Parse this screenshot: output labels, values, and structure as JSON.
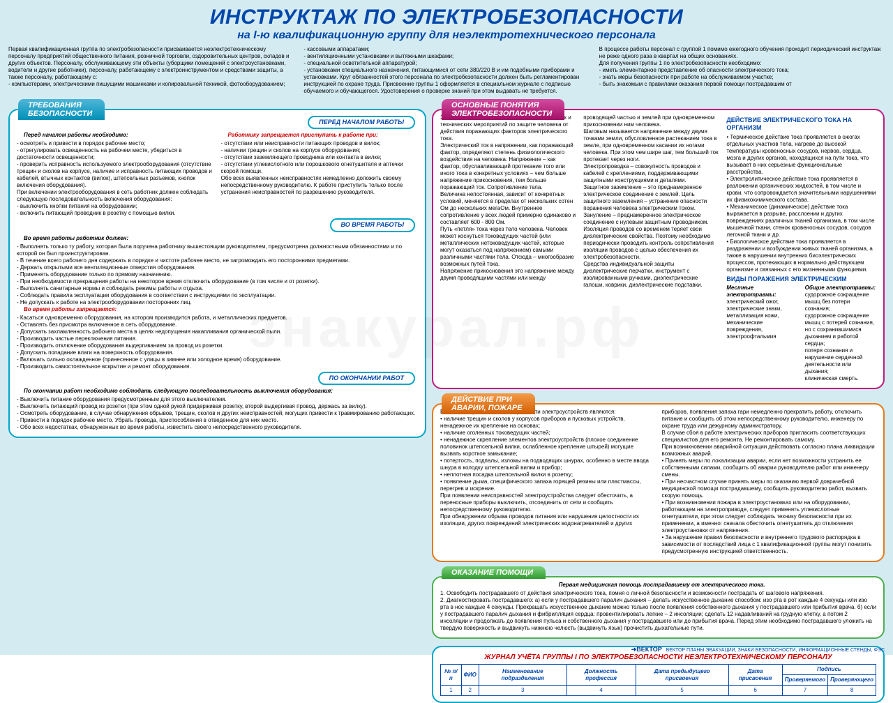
{
  "title": "ИНСТРУКТАЖ ПО ЭЛЕКТРОБЕЗОПАСНОСТИ",
  "subtitle": "на I-ю квалификационную группу для неэлектротехнического персонала",
  "intro": {
    "c1": "Первая квалификационная группа по электробезопасности присваивается неэлектротехническому персоналу предприятий общественного питания, розничной торговли, оздоровительных центров, складов и других объектов. Персоналу, обслуживающему эти объекты (уборщики помещений с электроустановками, водители и другие работники), персоналу, работающему с электроинструментом и средствами защиты, а также персоналу, работающему с:\n- компьютерами, электрическими пишущими машинками и копировальной техникой, фотооборудованием;",
    "c2": "- кассовыми аппаратами;\n- вентиляционными установками и вытяжными шкафами;\n- специальной осветительной аппаратурой;\n- установками специального назначения, питающимися от сети 380/220 В и им подобными приборами и установками. Круг обязанностей этого персонала по электробезопасности должен быть регламентирован инструкцией по охране труда. Присвоение группы 1 оформляется в специальном журнале с подписью обучаемого и обучающегося. Удостоверения о проверке знаний при этом выдавать не требуется.",
    "c3": "В процессе работы персонал с группой 1 помимо ежегодного обучения проходит периодический инструктаж не реже одного раза в квартал на общих основаниях.\nДля получения группы 1 по электробезопасности необходимо:\n- иметь элементарное представление об опасности электрического тока;\n- знать меры безопасности при работе на обслуживаемом участке;\n- быть знакомым с правилами оказания первой помощи пострадавшим от"
  },
  "safety": {
    "tab": "ТРЕБОВАНИЯ\nБЕЗОПАСНОСТИ",
    "pill1": "ПЕРЕД НАЧАЛОМ РАБОТЫ",
    "pill2": "ВО ВРЕМЯ РАБОТЫ",
    "pill3": "ПО ОКОНЧАНИИ РАБОТ",
    "l1": "Перед началом работы необходимо:",
    "l1items": "- осмотреть и привести в порядок рабочее место;\n- отрегулировать освещенность на рабочем месте, убедиться в достаточности освещенности;\n- проверить исправность используемого электрооборудования (отсутствие трещин и сколов на корпусе, наличие и исправность питающих проводов и кабелей, втычных контактов (вилок), штепсельных разъемов, кнопок включения оборудования).\nПри включении электрооборудования в сеть работник должен соблюдать следующую последовательность включения оборудования:\n- выключить кнопки питания на оборудовании;\n- включить питающий проводник в розетку с помощью вилки.",
    "r1": "Работнику запрещается приступать к работе при:",
    "r1items": "- отсутствии или неисправности питающих проводов и вилок;\n- наличии трещин и сколов на корпусе оборудования;\n- отсутствии заземляющего проводника или контакта в вилке;\n- отсутствии углекислотного или порошкового огнетушителя и аптечки скорой помощи.\nОбо всех выявленных неисправностях немедленно доложить своему непосредственному руководителю. К работе приступить только после устранения неисправностей по разрешению руководителя.",
    "work_h": "Во время работы работник должен:",
    "work": "- Выполнять только ту работу, которая была поручена работнику вышестоящим руководителем, предусмотрена должностными обязанностями и по которой он был проинструктирован.\n- В течение всего рабочего дня содержать в порядке и чистоте рабочее место, не загромождать его посторонними предметами.\n- Держать открытыми все вентиляционные отверстия оборудования.\n- Применять оборудование только по прямому назначению.\n- При необходимости прекращения работы на некоторое время отключить оборудование (в том числе и от розетки).\n- Выполнять санитарные нормы и соблюдать режимы работы и отдыха.\n- Соблюдать правила эксплуатации оборудования в соответствии с инструкциями по эксплуатации.\n- Не допускать к работе на электрооборудовании посторонних лиц.",
    "forbid_h": "Во время работы запрещается:",
    "forbid": "- Касаться одновременно оборудования, на котором производится работа, и металлических предметов.\n- Оставлять без присмотра включенное в сеть оборудование.\n- Допускать захламленность рабочего места в целях недопущения накапливания органической пыли.\n- Производить частые переключения питания.\n- Производить отключение оборудования выдергиванием за провод из розетки.\n- Допускать попадание влаги на поверхность оборудования.\n- Включать сильно охлажденное (принесенное с улицы в зимнее или холодное время) оборудование.\n- Производить самостоятельное вскрытие и ремонт оборудования.",
    "end_h": "По окончании работ необходимо соблюдать следующую последовательность выключения оборудования:",
    "end": "- Выключить питание оборудования предусмотренным для этого выключателем.\n- Выключить питающий провод из розетки (при этом одной рукой придерживая розетку, второй выдергивая провод, держась за вилку).\n- Осмотреть оборудование, в случае обнаружения обрывов, трещин, сколов и других неисправностей, могущих привести к травмированию работающих.\n- Привести в порядок рабочее место. Убрать провода, приспособления в отведенное для них место.\n- Обо всех недостатках, обнаруженных во время работы, известить своего непосредственного руководителя."
  },
  "concepts": {
    "tab": "ОСНОВНЫЕ ПОНЯТИЯ\nЭЛЕКТРОБЕЗОПАСНОСТИ",
    "c1": "Электробезопасность система организационных и технических мероприятий по защите человека от действия поражающих факторов электрического тока.\nЭлектрический ток в напряжении, как поражающий фактор, определяют степень физиологического воздействия на человека. Напряжение – как фактор, обуславливающий протекание того или иного тока в конкретных условиях – чем больше напряжение прикосновения, тем больше поражающий ток. Сопротивление тела.\nВеличина непостоянная, зависит от конкретных условий, меняется в пределах от нескольких сотен Ом до нескольких мегаОм. Внутреннее сопротивление у всех людей примерно одинаково и составляет 600 - 800 Ом.\nПуть «петля» тока через тело человека. Человек может коснуться токоведущих частей (или металлических нетоковедущих частей, которые могут оказаться под напряжением) самыми различными частями тела. Отсюда – многообразие возможных путей тока.\nНапряжение прикосновения это напряжение между двумя проводящими частями или между",
    "c2": "проводящей частью и землей при одновременном прикосновении ним человека.\nШаговым называется напряжение между двумя точками земли, обусловленное растеканием тока в земле, при одновременном касании их ногами человека. При этом чем шире шаг, тем больший ток протекает через ноги.\nЭлектропроводка – совокупность проводов и кабелей с креплениями, поддерживающими защитными конструкциями и деталями.\nЗащитное заземление – это преднамеренное электрическое соединение с землей. Цель защитного заземления – устранение опасности поражения человека электрическим током.\nЗануление – преднамеренное электрическое соединение с нулевым защитным проводником.\nИзоляция проводов со временем теряет свои диэлектрические свойства. Поэтому необходимо периодически проводить контроль сопротивления изоляции проводов с целью обеспечения их электробезопасности.\nСредства индивидуальной защиты диэлектрические перчатки, инструмент с изолированными ручками, диэлектрические галоши, коврики, диэлектрические подставки.",
    "h1": "ДЕЙСТВИЕ ЭЛЕКТРИЧЕСКОГО ТОКА НА ОРГАНИЗМ",
    "c3": "• Термическое действие тока проявляется в ожогах отдельных участков тела, нагреве до высокой температуры кровеносных сосудов, нервов, сердца, мозга и других органов, находящихся на пути тока, что вызывает в них серьезные функциональные расстройства.\n• Электролитическое действие тока проявляется в разложении органических жидкостей, в том числе и крови, что сопровождается значительными нарушениями их физикохимического состава.\n• Механическое (динамическое) действие тока выражается в разрыве, расслоении и других повреждениях различных тканей организма, в том числе мышечной ткани, стенок кровеносных сосудов, сосудов легочной ткани и др.\n• Биологическое действие тока проявляется в раздражении и возбуждении живых тканей организма, а также в нарушении внутренних биоэлектрических процессов, протекающих в нормально действующем организме и связанных с его жизненными функциями.",
    "h2": "ВИДЫ ПОРАЖЕНИЯ ЭЛЕКТРИЧЕСКИМ",
    "c4a_h": "Местные электротравмы:",
    "c4a": "электрический ожог,\nэлектрические знаки,\nметаллизация кожи,\nмеханические повреждения,\nэлектроофтальмия",
    "c4b_h": "Общие электротравмы:",
    "c4b": "судорожное сокращение мышц без потери сознания;\nсудорожное сокращение мышц с потерей сознания, но с сохранившимися дыханием и работой сердца;\nпотеря сознания и нарушение сердечной деятельности или дыхания;\nклиническая смерть."
  },
  "accident": {
    "tab": "ДЕЙСТВИЕ ПРИ\nАВАРИИ, ПОЖАРЕ",
    "c1": "Внешними признаками неисправности электроустройств являются:\n• наличие трещин и сколов у корпусов приборов и пусковых устройств, ненадежное их крепление на основах;\n• наличие оголенных токоведущих частей;\n• ненадежное скрепление элементов электроустройств (плохое соединение половинок штепсельной вилки, ослабленное крепление штырей) могущие вызвать короткое замыкание;\n• потертость, подпалы, изломы на подводящих шнурах, особенно в месте ввода шнура в колодку штепсельной вилки и прибор;\n• неплотная посадка штепсельной вилки в розетку;\n• появление дыма, специфического запаха горящей резины или пластмассы, перегрев и искрение.\nПри появлении неисправностей электроустройства следует обесточить, а переносные приборы выключить, отсоединить от сети и сообщить непосредственному руководителю.\nПри обнаружении обрыва проводов питания или нарушения целостности их изоляции, других повреждений электрических водонагревателей и других",
    "c2": "приборов, появления запаха гари немедленно прекратить работу, отключить питание и сообщить об этом непосредственному руководителю, инженеру по охране труда или дежурному администратору.\nВ случае сбоя в работе электрических приборов пригласить соответствующих специалистов для его ремонта. Не ремонтировать самому.\nПри возникновении аварийной ситуации действовать согласно плана ликвидации возможных аварий.\n• Принять меры по локализации аварии, если нет возможности устранить ее собственными силами, сообщить об аварии руководителю работ или инженеру смены.\n• При несчастном случае принять меры по оказанию первой доврачебной медицинской помощи пострадавшему, сообщить руководителю работ, вызвать скорую помощь.\n• При возникновении пожара в электроустановках или на оборудовании, работающем на электроприводе, следует применять углекислотные огнетушители, при этом следует соблюдать технику безопасности при их применении, а именно: сначала обесточить огнетушитель до отключения электроустановки от напряжения.\n• За нарушение правил безопасности и внутреннего трудового распорядка в зависимости от последствий лица с 1 квалификационной группы могут понизить предусмотренную инструкцией ответственность."
  },
  "help": {
    "tab": "ОКАЗАНИЕ ПОМОЩИ",
    "h": "Первая медицинская помощь пострадавшему от электрического тока.",
    "body": "1. Освободить пострадавшего от действия электрического тока, помня о личной безопасности и возможности пострадать от шагового напряжения.\n2. Диагностировать пострадавшего: а) если у пострадавшего паралич дыхания – делать искусственное дыхание способом: изо рта в рот каждые 4 секунды или изо рта в нос каждые 4 секунды. Прекращать искусственное дыхание можно только после появления собственного дыхания у пострадавшего или прибытия врача. б) если у пострадавшего паралич дыхания и фибрилляция сердца: провентилировать легкие – 2 инсоляции; сделать 12 надавливаний на грудную клетку, а потом 2 инсоляции и продолжать до появления пульса и собственного дыхания у пострадавшего или до прибытия врача. Перед этим необходимо пострадавшего уложить на твердую поверхность и выдвинуть нижнюю челюсть (выдвинуть язык) прочистить дыхательные пути."
  },
  "journal": {
    "title": "ЖУРНАЛ УЧЁТА ГРУППЫ I ПО ЭЛЕКТРОБЕЗОПАСНОСТИ  НЕЭЛЕКТРОТЕХНИЧЕСКОМУ ПЕРСОНАЛУ",
    "cols": [
      "№ п/п",
      "ФИО",
      "Наименование подразделения",
      "Должность профессия",
      "Дата предыдущего присвоения",
      "Дата присвоения",
      "Подпись"
    ],
    "subcols": [
      "Проверяемого",
      "Проверяющего"
    ],
    "nums": [
      "1",
      "2",
      "3",
      "4",
      "5",
      "6",
      "7",
      "8"
    ]
  },
  "footer": "ВЕКТОР   ПЛАНЫ ЭВАКУАЦИИ, ЗНАКИ БЕЗОПАСНОСТИ, ИНФОРМАЦИОННЫЕ СТЕНДЫ, ФЭС",
  "watermark": "знакурал.рф"
}
